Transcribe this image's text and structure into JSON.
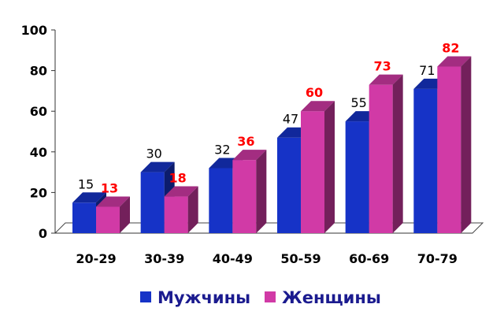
{
  "chart_data": {
    "type": "bar",
    "categories": [
      "20-29",
      "30-39",
      "40-49",
      "50-59",
      "60-69",
      "70-79"
    ],
    "series": [
      {
        "name": "Мужчины",
        "values": [
          15,
          30,
          32,
          47,
          55,
          71
        ],
        "color": "#1633c7",
        "label_color": "#000000"
      },
      {
        "name": "Женщины",
        "values": [
          13,
          18,
          36,
          60,
          73,
          82
        ],
        "color": "#d13aa6",
        "label_color": "#ff0000"
      }
    ],
    "ylim": [
      0,
      100
    ],
    "yticks": [
      0,
      20,
      40,
      60,
      80,
      100
    ],
    "legend": "bottom",
    "grid": false,
    "style": "3d"
  }
}
